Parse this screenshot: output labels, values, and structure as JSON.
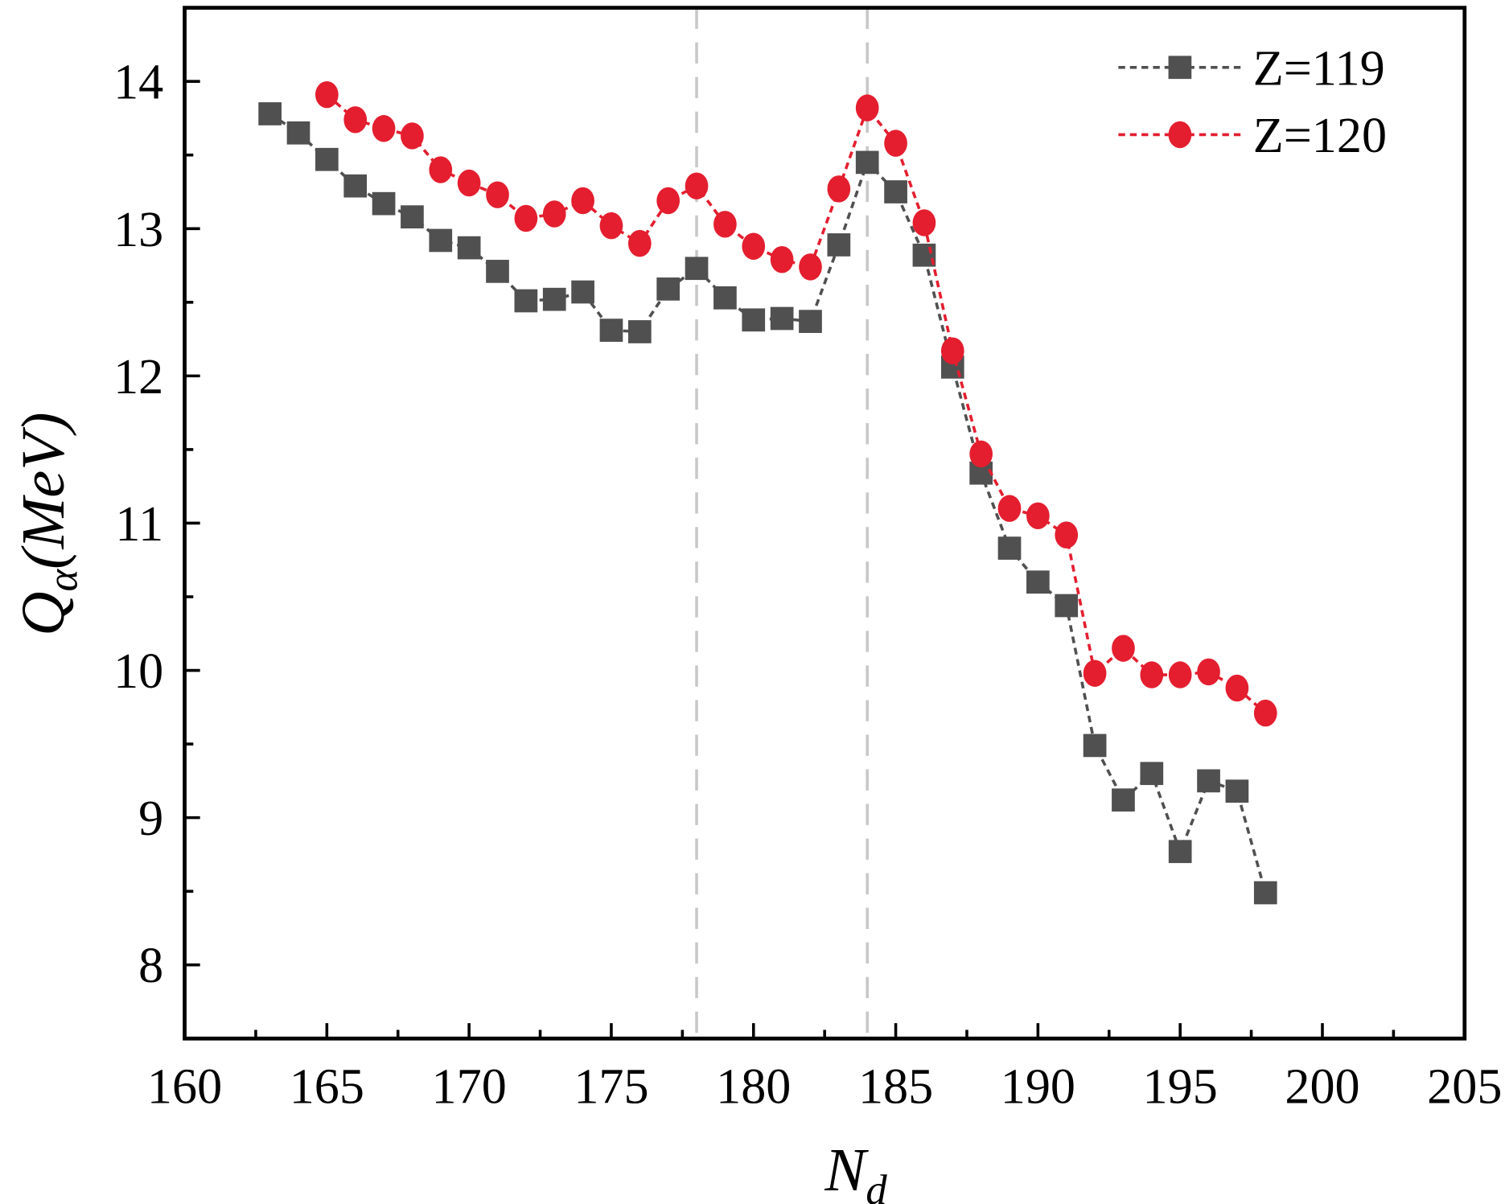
{
  "chart_data": {
    "type": "line",
    "xlabel": "N",
    "xlabel_sub": "d",
    "ylabel": "Q",
    "ylabel_sub": "α",
    "ylabel_unit": "(MeV)",
    "xlim": [
      160,
      205
    ],
    "ylim": [
      7.5,
      14.5
    ],
    "xticks": [
      160,
      165,
      170,
      175,
      180,
      185,
      190,
      195,
      200,
      205
    ],
    "yticks": [
      8,
      9,
      10,
      11,
      12,
      13,
      14
    ],
    "grid": false,
    "legend_position": "top-right",
    "reference_lines_x": [
      178,
      184
    ],
    "reference_line_color": "#c8c8c8",
    "series": [
      {
        "name": "Z=119",
        "marker": "square",
        "color": "#505050",
        "x": [
          163,
          164,
          165,
          166,
          167,
          168,
          169,
          170,
          171,
          172,
          173,
          174,
          175,
          176,
          177,
          178,
          179,
          180,
          181,
          182,
          183,
          184,
          185,
          186,
          187,
          188,
          189,
          190,
          191,
          192,
          193,
          194,
          195,
          196,
          197,
          198
        ],
        "y": [
          13.78,
          13.65,
          13.47,
          13.29,
          13.17,
          13.08,
          12.92,
          12.87,
          12.71,
          12.51,
          12.52,
          12.57,
          12.31,
          12.3,
          12.59,
          12.73,
          12.53,
          12.38,
          12.39,
          12.37,
          12.89,
          13.45,
          13.25,
          12.82,
          12.06,
          11.34,
          10.83,
          10.6,
          10.44,
          9.49,
          9.12,
          9.3,
          8.77,
          9.25,
          9.18,
          8.49
        ]
      },
      {
        "name": "Z=120",
        "marker": "circle",
        "color": "#e41e2f",
        "x": [
          165,
          166,
          167,
          168,
          169,
          170,
          171,
          172,
          173,
          174,
          175,
          176,
          177,
          178,
          179,
          180,
          181,
          182,
          183,
          184,
          185,
          186,
          187,
          188,
          189,
          190,
          191,
          192,
          193,
          194,
          195,
          196,
          197,
          198
        ],
        "y": [
          13.91,
          13.74,
          13.68,
          13.63,
          13.4,
          13.31,
          13.23,
          13.07,
          13.1,
          13.19,
          13.02,
          12.9,
          13.19,
          13.29,
          13.03,
          12.88,
          12.79,
          12.74,
          13.27,
          13.82,
          13.58,
          13.04,
          12.17,
          11.47,
          11.1,
          11.05,
          10.92,
          9.98,
          10.15,
          9.97,
          9.97,
          9.99,
          9.88,
          9.71
        ]
      }
    ]
  }
}
